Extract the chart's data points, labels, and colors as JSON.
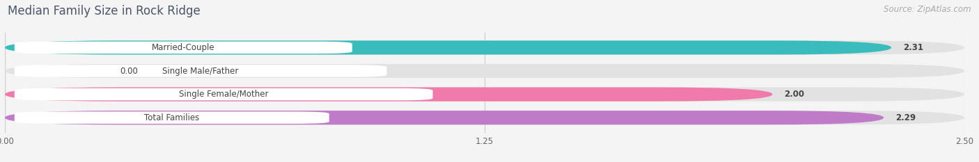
{
  "title": "Median Family Size in Rock Ridge",
  "source": "Source: ZipAtlas.com",
  "categories": [
    "Married-Couple",
    "Single Male/Father",
    "Single Female/Mother",
    "Total Families"
  ],
  "values": [
    2.31,
    0.0,
    2.0,
    2.29
  ],
  "bar_colors": [
    "#3bbcbc",
    "#aab4e8",
    "#f07aaa",
    "#c07bc8"
  ],
  "xlim_max": 2.5,
  "xticks": [
    0.0,
    1.25,
    2.5
  ],
  "xtick_labels": [
    "0.00",
    "1.25",
    "2.50"
  ],
  "bg_color": "#f4f4f4",
  "title_color": "#4a5568",
  "source_color": "#aaaaaa",
  "title_fontsize": 12,
  "source_fontsize": 8.5,
  "label_fontsize": 8.5,
  "value_fontsize": 8.5,
  "tick_fontsize": 8.5,
  "bar_height": 0.6
}
